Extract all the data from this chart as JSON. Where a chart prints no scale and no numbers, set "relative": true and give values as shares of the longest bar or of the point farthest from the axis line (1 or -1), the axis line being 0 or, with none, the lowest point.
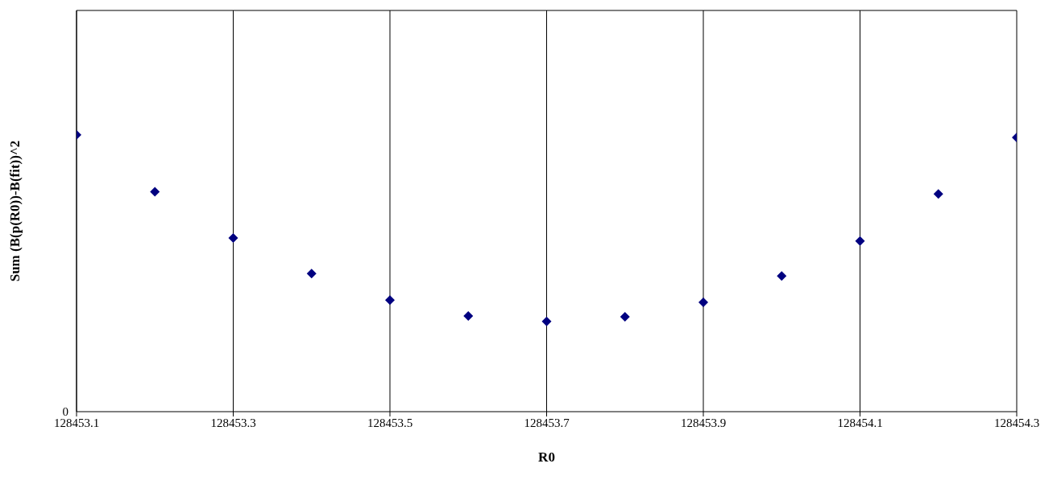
{
  "chart_data": {
    "type": "scatter",
    "relative": true,
    "xlabel": "R0",
    "ylabel": "Sum (B(p(R0))-B(fit))^2",
    "annotations": [
      "0"
    ],
    "x": [
      128453.1,
      128453.2,
      128453.3,
      128453.4,
      128453.5,
      128453.6,
      128453.7,
      128453.8,
      128453.9,
      128454.0,
      128454.1,
      128454.2,
      128454.3
    ],
    "series": [
      {
        "color": "#000080",
        "values": [
          1,
          0.795,
          0.628,
          0.499,
          0.403,
          0.346,
          0.326,
          0.343,
          0.395,
          0.49,
          0.617,
          0.787,
          0.991
        ]
      }
    ],
    "xlim": [
      128453.1,
      128454.3
    ],
    "xticks": [
      128453.1,
      128453.3,
      128453.5,
      128453.7,
      128453.9,
      128454.1,
      128454.3
    ],
    "grid": "x",
    "marker": "diamond"
  }
}
